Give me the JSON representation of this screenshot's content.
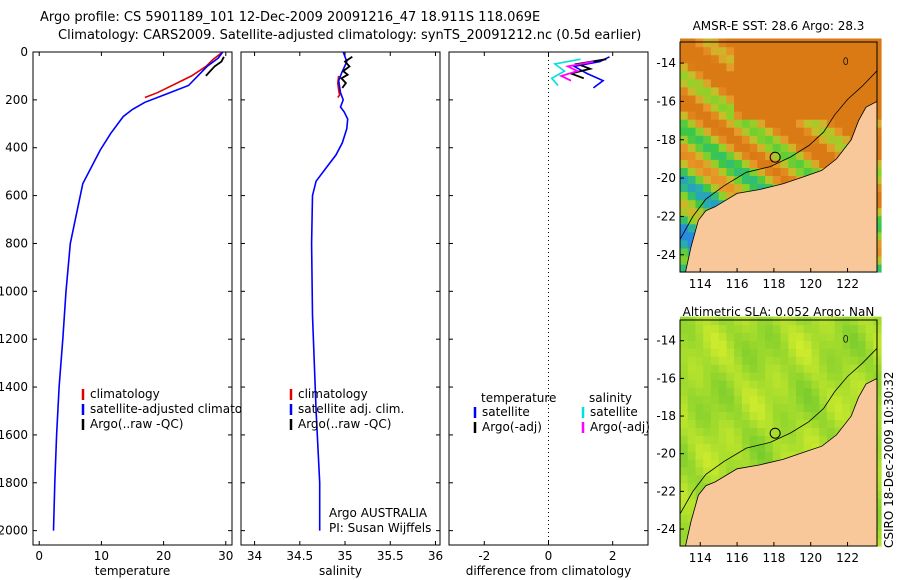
{
  "header": {
    "title_line1": "Argo profile: CS 5901189_101 12-Dec-2009 20091216_47 18.911S 118.069E",
    "title_line2": "Climatology: CARS2009. Satellite-adjusted climatology: synTS_20091212.nc (0.5d earlier)"
  },
  "footer": {
    "stamp": "CSIRO 18-Dec-2009 10:30:32"
  },
  "colors": {
    "climatology": "#e00000",
    "satellite": "#0000ff",
    "argo": "#000000",
    "argo_adj_salinity": "#ff00ff",
    "satellite_salinity": "#00e0e0",
    "land": "#f8c89a"
  },
  "chart_data": [
    {
      "id": "temperature",
      "type": "line",
      "xlabel": "temperature",
      "ylabel": "",
      "xlim": [
        -1,
        31
      ],
      "ylim": [
        2060,
        0
      ],
      "xticks": [
        0,
        10,
        20,
        30
      ],
      "yticks": [
        0,
        200,
        400,
        600,
        800,
        1000,
        1200,
        1400,
        1600,
        1800,
        2000
      ],
      "legend": [
        "climatology",
        "satellite-adjusted climatology",
        "Argo(..raw -QC)"
      ],
      "legend_placement": "lower-right",
      "series": [
        {
          "name": "climatology",
          "color": "#e00000",
          "x": [
            29.5,
            28.0,
            26.8,
            24.5,
            19.0,
            17.0
          ],
          "y": [
            0,
            30,
            60,
            100,
            170,
            190
          ]
        },
        {
          "name": "satellite-adjusted climatology",
          "color": "#0000ff",
          "x": [
            29.5,
            28.8,
            27.0,
            25.5,
            24.0,
            20.0,
            17.0,
            15.0,
            13.5,
            11.5,
            9.8,
            7.0,
            5.0,
            4.3,
            3.8,
            3.2,
            2.8,
            2.5,
            2.3
          ],
          "y": [
            0,
            25,
            60,
            100,
            140,
            180,
            210,
            240,
            270,
            340,
            410,
            550,
            800,
            1000,
            1200,
            1400,
            1600,
            1800,
            2000
          ]
        },
        {
          "name": "Argo(..raw -QC)",
          "color": "#000000",
          "x": [
            29.7,
            29.3,
            28.2,
            27.5,
            26.8
          ],
          "y": [
            20,
            40,
            60,
            80,
            100
          ]
        }
      ]
    },
    {
      "id": "salinity",
      "type": "line",
      "xlabel": "salinity",
      "xlim": [
        33.85,
        36.05
      ],
      "ylim": [
        2060,
        0
      ],
      "xticks": [
        34,
        34.5,
        35,
        35.5,
        36
      ],
      "yticks": [
        0,
        200,
        400,
        600,
        800,
        1000,
        1200,
        1400,
        1600,
        1800,
        2000
      ],
      "legend": [
        "climatology",
        "satellite adj. clim.",
        "Argo(..raw -QC)"
      ],
      "legend_placement": "lower-right",
      "annotation": [
        "Argo AUSTRALIA",
        "PI: Susan Wijffels"
      ],
      "series": [
        {
          "name": "climatology",
          "color": "#e00000",
          "x": [
            34.93,
            34.92,
            34.93,
            34.94,
            34.92
          ],
          "y": [
            100,
            130,
            160,
            180,
            190
          ]
        },
        {
          "name": "satellite adj. clim.",
          "color": "#0000ff",
          "x": [
            34.98,
            35.02,
            34.96,
            34.93,
            34.95,
            34.98,
            34.95,
            34.99,
            35.03,
            35.02,
            34.97,
            34.9,
            34.8,
            34.68,
            34.64,
            34.63,
            34.64,
            34.68,
            34.72,
            34.72
          ],
          "y": [
            0,
            40,
            90,
            120,
            170,
            200,
            230,
            250,
            280,
            320,
            380,
            430,
            480,
            540,
            600,
            800,
            1100,
            1500,
            1800,
            2000
          ]
        },
        {
          "name": "Argo(..raw -QC)",
          "color": "#000000",
          "x": [
            35.08,
            35.0,
            35.05,
            34.98,
            35.03,
            34.96,
            35.01,
            34.97
          ],
          "y": [
            20,
            40,
            60,
            80,
            95,
            110,
            130,
            150
          ]
        }
      ]
    },
    {
      "id": "difference",
      "type": "line",
      "xlabel": "difference from climatology",
      "xlim": [
        -3.1,
        3.1
      ],
      "ylim": [
        2060,
        0
      ],
      "xticks": [
        -2,
        0,
        2
      ],
      "yticks": [
        0,
        200,
        400,
        600,
        800,
        1000,
        1200,
        1400,
        1600,
        1800,
        2000
      ],
      "zero_line": 0,
      "legend_groups": [
        {
          "title": "temperature",
          "items": [
            "satellite",
            "Argo(-adj)"
          ]
        },
        {
          "title": "salinity",
          "items": [
            "satellite",
            "Argo(-adj)"
          ]
        }
      ],
      "legend_placement": "bottom",
      "series": [
        {
          "name": "temperature satellite",
          "color": "#0000ff",
          "x": [
            1.9,
            1.6,
            0.8,
            1.2,
            1.7,
            1.4
          ],
          "y": [
            20,
            40,
            60,
            90,
            120,
            150
          ]
        },
        {
          "name": "temperature Argo(-adj)",
          "color": "#000000",
          "x": [
            1.8,
            0.9,
            1.3,
            0.7,
            1.1
          ],
          "y": [
            30,
            50,
            70,
            90,
            110
          ]
        },
        {
          "name": "salinity satellite",
          "color": "#00e0e0",
          "x": [
            1.0,
            0.2,
            0.5,
            0.1,
            0.3
          ],
          "y": [
            30,
            50,
            80,
            110,
            140
          ]
        },
        {
          "name": "salinity Argo(-adj)",
          "color": "#ff00ff",
          "x": [
            1.4,
            0.6,
            0.9,
            0.4,
            0.7
          ],
          "y": [
            40,
            60,
            80,
            100,
            120
          ]
        }
      ]
    },
    {
      "id": "sst_map",
      "type": "heatmap",
      "title": "AMSR-E SST: 28.6 Argo: 28.3",
      "xlim": [
        112.9,
        123.6
      ],
      "ylim": [
        -24.9,
        -12.9
      ],
      "xticks": [
        114,
        116,
        118,
        120,
        122
      ],
      "yticks": [
        -14,
        -16,
        -18,
        -20,
        -22,
        -24
      ],
      "profile_location": [
        118.069,
        -18.911
      ]
    },
    {
      "id": "sla_map",
      "type": "heatmap",
      "title": "Altimetric SLA: 0.052 Argo: NaN",
      "xlim": [
        112.9,
        123.6
      ],
      "ylim": [
        -24.9,
        -12.9
      ],
      "xticks": [
        114,
        116,
        118,
        120,
        122
      ],
      "yticks": [
        -14,
        -16,
        -18,
        -20,
        -22,
        -24
      ],
      "profile_location": [
        118.069,
        -18.911
      ]
    }
  ]
}
